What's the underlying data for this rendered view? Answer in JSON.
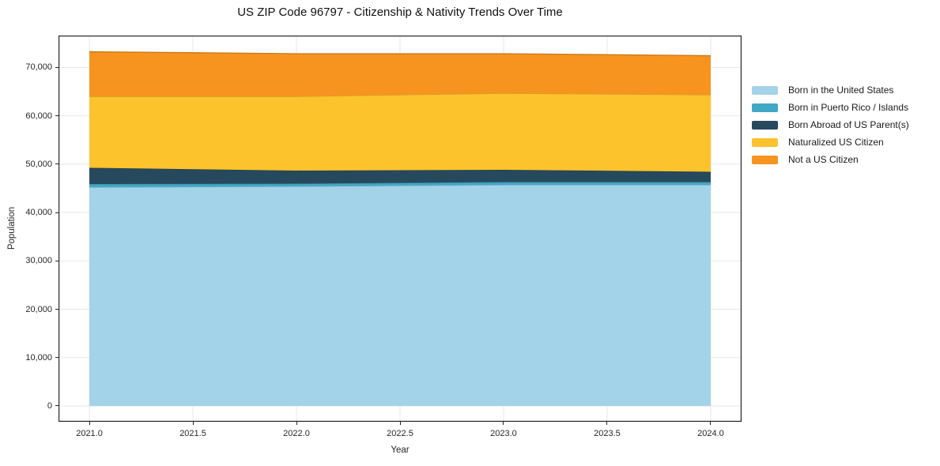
{
  "title": "US ZIP Code 96797 - Citizenship & Nativity Trends Over Time",
  "chart_data": {
    "type": "area",
    "stacked": true,
    "title": "US ZIP Code 96797 - Citizenship & Nativity Trends Over Time",
    "xlabel": "Year",
    "ylabel": "Population",
    "x": [
      2021,
      2022,
      2023,
      2024
    ],
    "series": [
      {
        "name": "Born in the United States",
        "color": "#a3d3e8",
        "values": [
          45230,
          45400,
          45720,
          45720
        ]
      },
      {
        "name": "Born in Puerto Rico / Islands",
        "color": "#41a8c6",
        "values": [
          660,
          570,
          580,
          580
        ]
      },
      {
        "name": "Born Abroad of US Parent(s)",
        "color": "#27495d",
        "values": [
          3350,
          2700,
          2530,
          2120
        ]
      },
      {
        "name": "Naturalized US Citizen",
        "color": "#fcc32d",
        "values": [
          14770,
          15340,
          15840,
          15920
        ]
      },
      {
        "name": "Not a US Citizen",
        "color": "#f7941f",
        "values": [
          9230,
          8820,
          8160,
          8080
        ]
      }
    ],
    "x_tick_labels": [
      "2021.0",
      "2021.5",
      "2022.0",
      "2022.5",
      "2023.0",
      "2023.5",
      "2024.0"
    ],
    "x_tick_values": [
      2021.0,
      2021.5,
      2022.0,
      2022.5,
      2023.0,
      2023.5,
      2024.0
    ],
    "y_tick_labels": [
      "0",
      "10,000",
      "20,000",
      "30,000",
      "40,000",
      "50,000",
      "60,000",
      "70,000"
    ],
    "y_tick_values": [
      0,
      10000,
      20000,
      30000,
      40000,
      50000,
      60000,
      70000
    ],
    "xlim": [
      2020.851,
      2024.149
    ],
    "ylim": [
      -3270,
      76590
    ],
    "grid": true,
    "grid_color": "#e7e7e7",
    "spine_color": "#262626",
    "background_color": "#ffffff",
    "legend_position": "right"
  }
}
